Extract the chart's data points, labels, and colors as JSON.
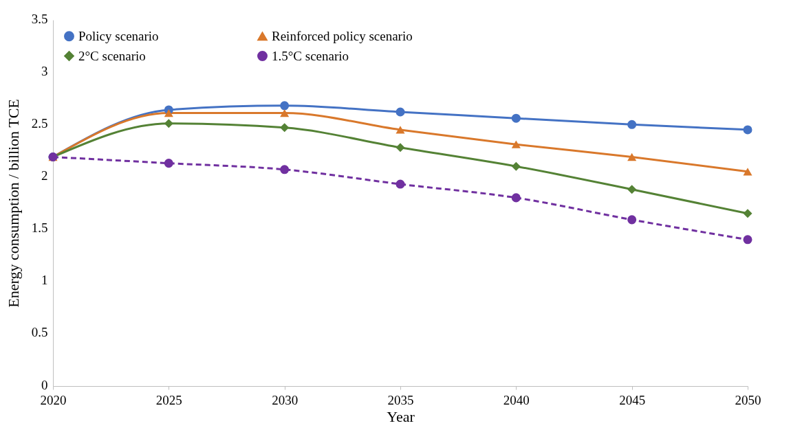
{
  "chart_data": {
    "type": "line",
    "xlabel": "Year",
    "ylabel": "Energy consumption / billion TCE",
    "x": [
      2020,
      2025,
      2030,
      2035,
      2040,
      2045,
      2050
    ],
    "xlim": [
      2020,
      2050
    ],
    "xticks": [
      2020,
      2025,
      2030,
      2035,
      2040,
      2045,
      2050
    ],
    "ylim": [
      0,
      3.5
    ],
    "yticks": [
      0,
      0.5,
      1,
      1.5,
      2,
      2.5,
      3,
      3.5
    ],
    "grid": false,
    "legend": "top",
    "series": [
      {
        "name": "Policy scenario",
        "color": "#4472c4",
        "marker": "circle",
        "line_style": "solid",
        "values": [
          2.19,
          2.64,
          2.68,
          2.62,
          2.56,
          2.5,
          2.45
        ]
      },
      {
        "name": "Reinforced policy scenario",
        "color": "#d9782b",
        "marker": "triangle",
        "line_style": "solid",
        "values": [
          2.19,
          2.61,
          2.61,
          2.45,
          2.31,
          2.19,
          2.05
        ]
      },
      {
        "name": "2°C scenario",
        "color": "#548235",
        "marker": "diamond",
        "line_style": "solid",
        "values": [
          2.19,
          2.51,
          2.47,
          2.28,
          2.1,
          1.88,
          1.65
        ]
      },
      {
        "name": "1.5°C scenario",
        "color": "#7030a0",
        "marker": "circle",
        "line_style": "dashed",
        "values": [
          2.19,
          2.13,
          2.07,
          1.93,
          1.8,
          1.59,
          1.4
        ]
      }
    ]
  }
}
